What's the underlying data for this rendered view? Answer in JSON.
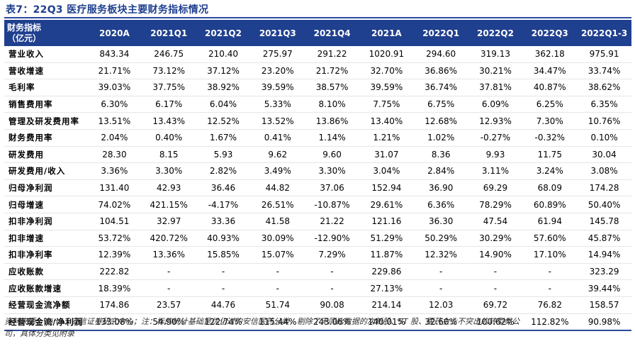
{
  "title": "表7：22Q3 医疗服务板块主要财务指标情况",
  "header": {
    "row_label_line1": "财务指标",
    "row_label_line2": "（亿元）",
    "columns": [
      "2020A",
      "2021Q1",
      "2021Q2",
      "2021Q3",
      "2021Q4",
      "2021A",
      "2022Q1",
      "2022Q2",
      "2022Q3",
      "2022Q1-3"
    ]
  },
  "rows": [
    {
      "label": "营业收入",
      "values": [
        "843.34",
        "246.75",
        "210.40",
        "275.97",
        "291.22",
        "1020.91",
        "294.60",
        "319.13",
        "362.18",
        "975.91"
      ]
    },
    {
      "label": "营收增速",
      "values": [
        "21.71%",
        "73.12%",
        "37.12%",
        "23.20%",
        "21.72%",
        "32.70%",
        "36.86%",
        "30.21%",
        "34.47%",
        "33.74%"
      ]
    },
    {
      "label": "毛利率",
      "values": [
        "39.03%",
        "37.75%",
        "38.92%",
        "39.59%",
        "38.57%",
        "39.59%",
        "36.74%",
        "37.81%",
        "40.87%",
        "38.62%"
      ]
    },
    {
      "label": "销售费用率",
      "values": [
        "6.30%",
        "6.17%",
        "6.04%",
        "5.33%",
        "8.10%",
        "7.75%",
        "6.75%",
        "6.09%",
        "6.25%",
        "6.35%"
      ]
    },
    {
      "label": "管理及研发费用率",
      "values": [
        "13.51%",
        "13.43%",
        "12.52%",
        "13.52%",
        "13.86%",
        "13.40%",
        "12.68%",
        "12.93%",
        "7.30%",
        "10.76%"
      ]
    },
    {
      "label": "财务费用率",
      "values": [
        "2.04%",
        "0.40%",
        "1.67%",
        "0.41%",
        "1.14%",
        "1.21%",
        "1.02%",
        "-0.27%",
        "-0.32%",
        "0.10%"
      ]
    },
    {
      "label": "研发费用",
      "values": [
        "28.30",
        "8.15",
        "5.93",
        "9.62",
        "9.60",
        "31.07",
        "8.36",
        "9.93",
        "11.75",
        "30.04"
      ]
    },
    {
      "label": "研发费用/收入",
      "values": [
        "3.36%",
        "3.30%",
        "2.82%",
        "3.49%",
        "3.30%",
        "3.04%",
        "2.84%",
        "3.11%",
        "3.24%",
        "3.08%"
      ]
    },
    {
      "label": "归母净利润",
      "values": [
        "131.40",
        "42.93",
        "36.46",
        "44.82",
        "37.06",
        "152.94",
        "36.90",
        "69.29",
        "68.09",
        "174.28"
      ]
    },
    {
      "label": "归母增速",
      "values": [
        "74.02%",
        "421.15%",
        "-4.17%",
        "26.51%",
        "-10.87%",
        "29.61%",
        "6.36%",
        "78.29%",
        "60.89%",
        "50.40%"
      ]
    },
    {
      "label": "扣非净利润",
      "values": [
        "104.51",
        "32.97",
        "33.36",
        "41.58",
        "21.22",
        "121.16",
        "36.30",
        "47.54",
        "61.94",
        "145.78"
      ]
    },
    {
      "label": "扣非增速",
      "values": [
        "53.72%",
        "420.72%",
        "40.93%",
        "30.09%",
        "-12.90%",
        "51.29%",
        "50.29%",
        "30.29%",
        "57.60%",
        "45.87%"
      ]
    },
    {
      "label": "扣非净利率",
      "values": [
        "12.39%",
        "13.36%",
        "15.85%",
        "15.07%",
        "7.29%",
        "11.87%",
        "12.32%",
        "14.90%",
        "17.10%",
        "14.94%"
      ]
    },
    {
      "label": "应收账款",
      "values": [
        "222.82",
        "-",
        "-",
        "-",
        "-",
        "229.86",
        "-",
        "-",
        "-",
        "323.29"
      ]
    },
    {
      "label": "应收账款增速",
      "values": [
        "18.39%",
        "-",
        "-",
        "-",
        "-",
        "27.13%",
        "-",
        "-",
        "-",
        "39.44%"
      ]
    },
    {
      "label": "经营现金流净额",
      "values": [
        "174.86",
        "23.57",
        "44.76",
        "51.74",
        "90.08",
        "214.14",
        "12.03",
        "69.72",
        "76.82",
        "158.57"
      ]
    },
    {
      "label": "经营现金流/净利润",
      "values": [
        "133.08%",
        "54.90%",
        "122.74%",
        "115.44%",
        "243.06%",
        "140.01%",
        "32.60%",
        "100.62%",
        "112.82%",
        "90.98%"
      ]
    }
  ],
  "source_line1": "资料来源：Wind、安信证券研究中心；注：标的统计基础是优化过的安信医药分类，剔除了无同比数据的次新股、ST 股、医药主业不突出的转型类公",
  "source_line2": "司，具体分类见附录"
}
